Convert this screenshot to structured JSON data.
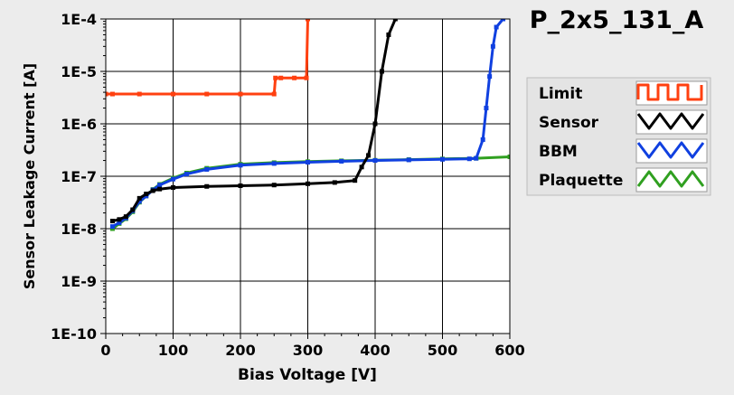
{
  "chart_data": {
    "type": "line",
    "title": "P_2x5_131_A",
    "xlabel": "Bias Voltage [V]",
    "ylabel": "Sensor Leakage Current [A]",
    "xlim": [
      0,
      600
    ],
    "ylim": [
      1e-10,
      0.0001
    ],
    "yscale": "log",
    "grid": true,
    "legend_position": "right",
    "x_ticks": [
      "0",
      "100",
      "200",
      "300",
      "400",
      "500",
      "600"
    ],
    "y_ticks": [
      "1E-10",
      "1E-9",
      "1E-8",
      "1E-7",
      "1E-6",
      "1E-5",
      "1E-4"
    ],
    "series": [
      {
        "name": "Limit",
        "color": "#ff4010",
        "x": [
          0,
          10,
          50,
          100,
          150,
          200,
          250,
          252,
          260,
          280,
          298,
          300
        ],
        "y": [
          3.7e-06,
          3.7e-06,
          3.7e-06,
          3.7e-06,
          3.7e-06,
          3.7e-06,
          3.7e-06,
          7.5e-06,
          7.5e-06,
          7.5e-06,
          7.5e-06,
          0.0001
        ]
      },
      {
        "name": "Sensor",
        "color": "#000000",
        "x": [
          10,
          20,
          30,
          40,
          50,
          60,
          70,
          80,
          100,
          150,
          200,
          250,
          300,
          340,
          370,
          380,
          390,
          400,
          410,
          420,
          430
        ],
        "y": [
          1.4e-08,
          1.5e-08,
          1.7e-08,
          2.3e-08,
          3.8e-08,
          4.6e-08,
          5.3e-08,
          5.7e-08,
          6.1e-08,
          6.4e-08,
          6.6e-08,
          6.8e-08,
          7.2e-08,
          7.6e-08,
          8.3e-08,
          1.5e-07,
          2.5e-07,
          1e-06,
          1e-05,
          5e-05,
          0.0001
        ]
      },
      {
        "name": "BBM",
        "color": "#1040e0",
        "x": [
          10,
          20,
          30,
          40,
          50,
          60,
          70,
          80,
          100,
          120,
          150,
          200,
          250,
          300,
          350,
          400,
          450,
          500,
          540,
          550,
          560,
          565,
          570,
          575,
          580,
          590
        ],
        "y": [
          1.1e-08,
          1.3e-08,
          1.6e-08,
          2.2e-08,
          3.3e-08,
          4.2e-08,
          5.5e-08,
          6.8e-08,
          8.8e-08,
          1.1e-07,
          1.35e-07,
          1.62e-07,
          1.75e-07,
          1.85e-07,
          1.93e-07,
          2e-07,
          2.05e-07,
          2.1e-07,
          2.15e-07,
          2.2e-07,
          5e-07,
          2e-06,
          8e-06,
          3e-05,
          7e-05,
          0.0001
        ]
      },
      {
        "name": "Plaquette",
        "color": "#30a020",
        "x": [
          10,
          20,
          30,
          40,
          50,
          60,
          70,
          80,
          100,
          120,
          150,
          200,
          250,
          300,
          350,
          400,
          450,
          500,
          550,
          600
        ],
        "y": [
          1e-08,
          1.25e-08,
          1.55e-08,
          2.1e-08,
          3.2e-08,
          4.2e-08,
          5.6e-08,
          7e-08,
          9.2e-08,
          1.15e-07,
          1.42e-07,
          1.7e-07,
          1.82e-07,
          1.9e-07,
          1.97e-07,
          2.02e-07,
          2.08e-07,
          2.14e-07,
          2.2e-07,
          2.35e-07
        ]
      }
    ]
  }
}
